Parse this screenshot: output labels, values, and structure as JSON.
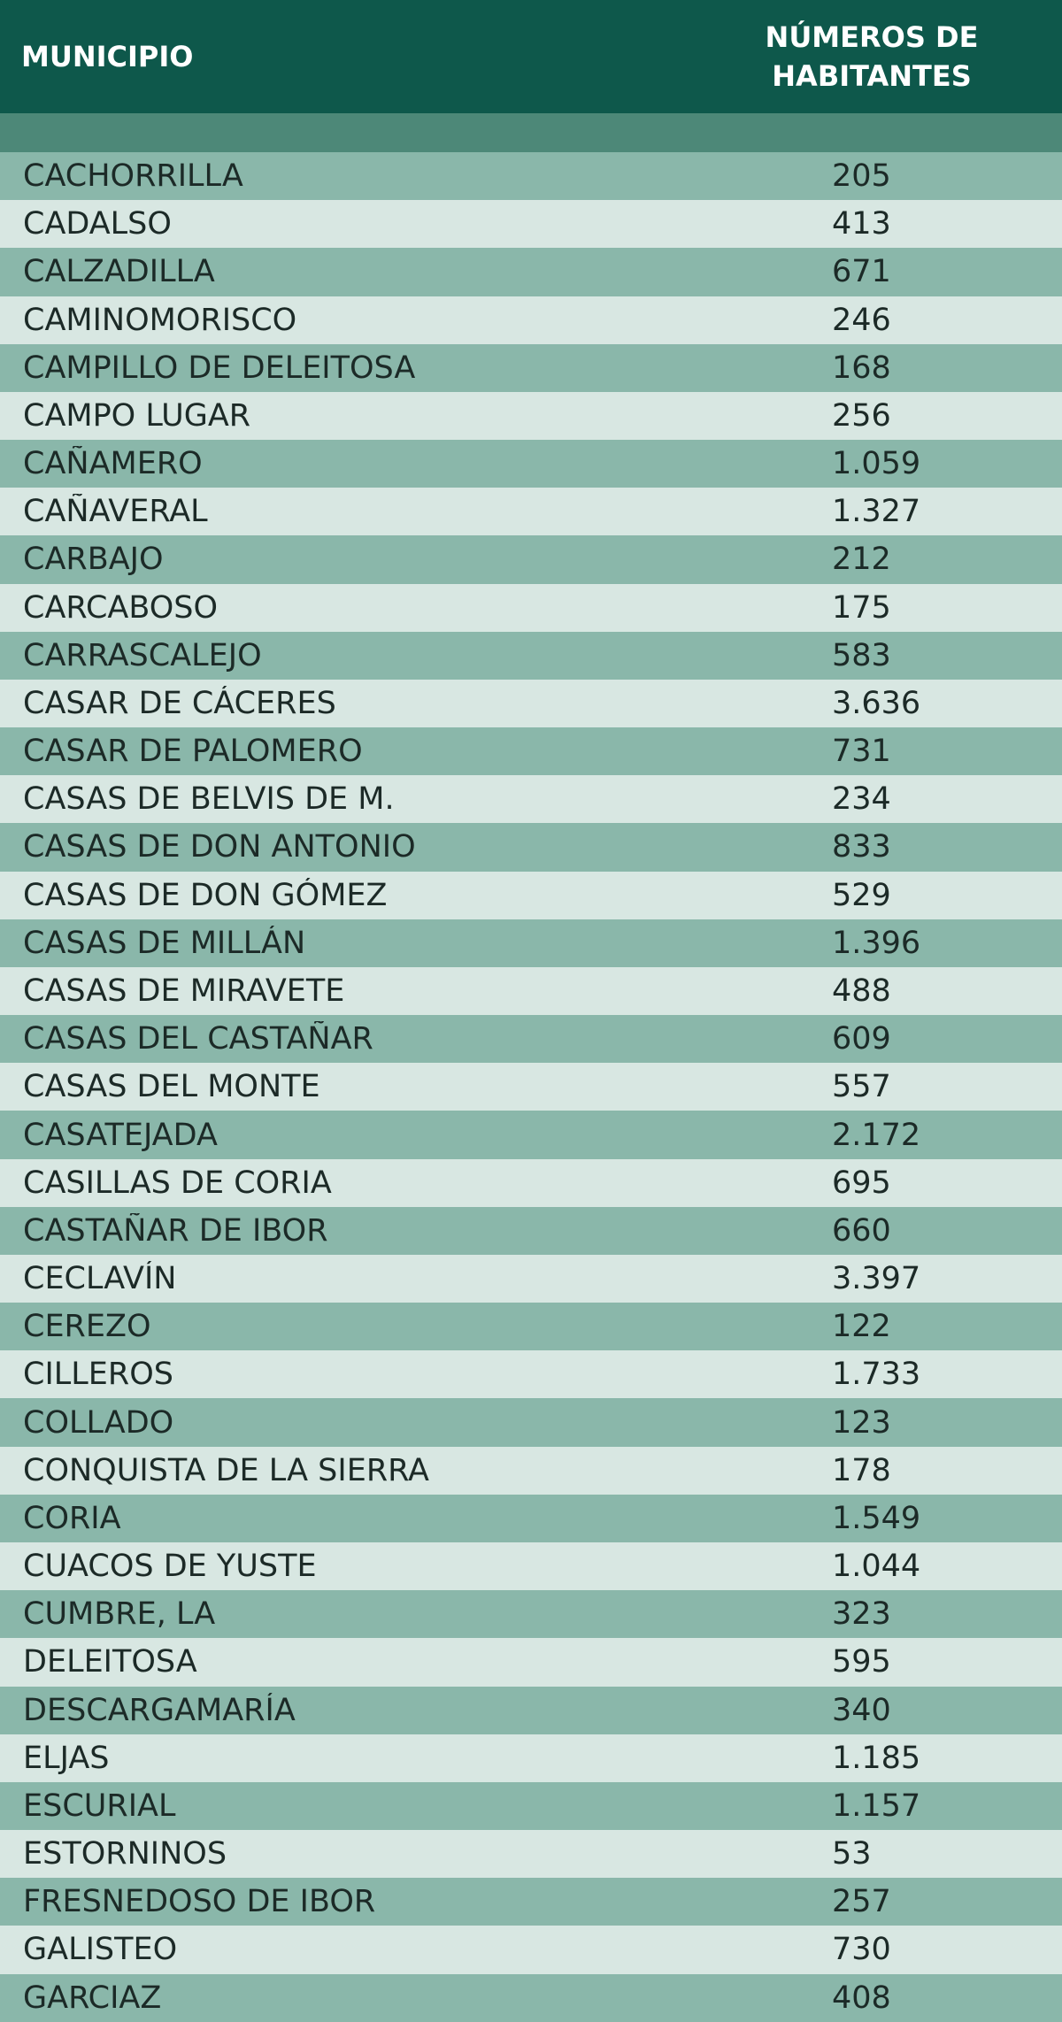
{
  "table": {
    "headers": {
      "municipio": "MUNICIPIO",
      "habitantes_line1": "NÚMEROS DE",
      "habitantes_line2": "HABITANTES"
    },
    "rows": [
      {
        "municipio": "CACHORRILLA",
        "habitantes": "205"
      },
      {
        "municipio": "CADALSO",
        "habitantes": "413"
      },
      {
        "municipio": "CALZADILLA",
        "habitantes": "671"
      },
      {
        "municipio": "CAMINOMORISCO",
        "habitantes": "246"
      },
      {
        "municipio": "CAMPILLO DE DELEITOSA",
        "habitantes": "168"
      },
      {
        "municipio": "CAMPO LUGAR",
        "habitantes": "256"
      },
      {
        "municipio": "CAÑAMERO",
        "habitantes": "1.059"
      },
      {
        "municipio": "CAÑAVERAL",
        "habitantes": "1.327"
      },
      {
        "municipio": "CARBAJO",
        "habitantes": "212"
      },
      {
        "municipio": "CARCABOSO",
        "habitantes": "175"
      },
      {
        "municipio": "CARRASCALEJO",
        "habitantes": "583"
      },
      {
        "municipio": "CASAR DE CÁCERES",
        "habitantes": "3.636"
      },
      {
        "municipio": "CASAR DE PALOMERO",
        "habitantes": "731"
      },
      {
        "municipio": "CASAS DE BELVIS DE M.",
        "habitantes": "234"
      },
      {
        "municipio": "CASAS DE DON ANTONIO",
        "habitantes": "833"
      },
      {
        "municipio": "CASAS DE DON GÓMEZ",
        "habitantes": "529"
      },
      {
        "municipio": "CASAS DE MILLÁN",
        "habitantes": "1.396"
      },
      {
        "municipio": "CASAS DE MIRAVETE",
        "habitantes": "488"
      },
      {
        "municipio": "CASAS DEL CASTAÑAR",
        "habitantes": "609"
      },
      {
        "municipio": "CASAS DEL MONTE",
        "habitantes": "557"
      },
      {
        "municipio": "CASATEJADA",
        "habitantes": "2.172"
      },
      {
        "municipio": "CASILLAS DE CORIA",
        "habitantes": "695"
      },
      {
        "municipio": "CASTAÑAR DE IBOR",
        "habitantes": "660"
      },
      {
        "municipio": "CECLAVÍN",
        "habitantes": "3.397"
      },
      {
        "municipio": "CEREZO",
        "habitantes": "122"
      },
      {
        "municipio": "CILLEROS",
        "habitantes": "1.733"
      },
      {
        "municipio": "COLLADO",
        "habitantes": "123"
      },
      {
        "municipio": "CONQUISTA DE LA SIERRA",
        "habitantes": "178"
      },
      {
        "municipio": "CORIA",
        "habitantes": "1.549"
      },
      {
        "municipio": "CUACOS DE YUSTE",
        "habitantes": "1.044"
      },
      {
        "municipio": "CUMBRE, LA",
        "habitantes": "323"
      },
      {
        "municipio": "DELEITOSA",
        "habitantes": "595"
      },
      {
        "municipio": "DESCARGAMARÍA",
        "habitantes": "340"
      },
      {
        "municipio": "ELJAS",
        "habitantes": "1.185"
      },
      {
        "municipio": "ESCURIAL",
        "habitantes": "1.157"
      },
      {
        "municipio": "ESTORNINOS",
        "habitantes": "53"
      },
      {
        "municipio": "FRESNEDOSO DE IBOR",
        "habitantes": "257"
      },
      {
        "municipio": "GALISTEO",
        "habitantes": "730"
      },
      {
        "municipio": "GARCIAZ",
        "habitantes": "408"
      }
    ]
  },
  "colors": {
    "header_bg": "#0e584b",
    "subheader_bg": "#4d8878",
    "row_dark": "#8ab7aa",
    "row_light": "#d8e7e2"
  }
}
